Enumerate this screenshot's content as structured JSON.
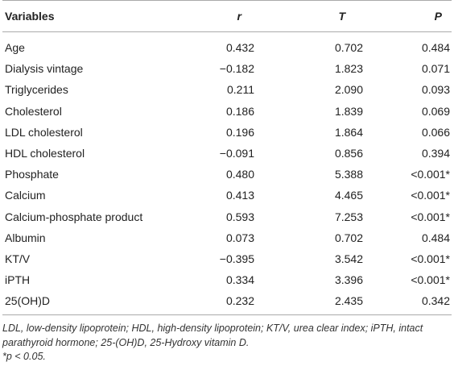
{
  "table": {
    "header": [
      "Variables",
      "r",
      "T",
      "P"
    ],
    "rows": [
      [
        "Age",
        "0.432",
        "0.702",
        "0.484"
      ],
      [
        "Dialysis vintage",
        "−0.182",
        "1.823",
        "0.071"
      ],
      [
        "Triglycerides",
        "0.211",
        "2.090",
        "0.093"
      ],
      [
        "Cholesterol",
        "0.186",
        "1.839",
        "0.069"
      ],
      [
        "LDL cholesterol",
        "0.196",
        "1.864",
        "0.066"
      ],
      [
        "HDL cholesterol",
        "−0.091",
        "0.856",
        "0.394"
      ],
      [
        "Phosphate",
        "0.480",
        "5.388",
        "<0.001*"
      ],
      [
        "Calcium",
        "0.413",
        "4.465",
        "<0.001*"
      ],
      [
        "Calcium-phosphate product",
        "0.593",
        "7.253",
        "<0.001*"
      ],
      [
        "Albumin",
        "0.073",
        "0.702",
        "0.484"
      ],
      [
        "KT/V",
        "−0.395",
        "3.542",
        "<0.001*"
      ],
      [
        "iPTH",
        "0.334",
        "3.396",
        "<0.001*"
      ],
      [
        "25(OH)D",
        "0.232",
        "2.435",
        "0.342"
      ]
    ]
  },
  "footnotes": [
    "LDL, low-density lipoprotein; HDL, high-density lipoprotein; KT/V, urea clear index; iPTH, intact parathyroid hormone; 25-(OH)D, 25-Hydroxy vitamin D.",
    "*p < 0.05."
  ]
}
